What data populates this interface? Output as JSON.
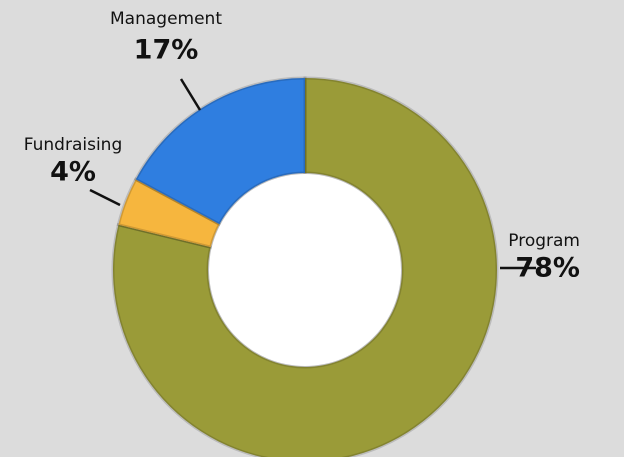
{
  "chart_data": {
    "type": "donut",
    "categories": [
      "Program",
      "Fundraising",
      "Management"
    ],
    "values": [
      78,
      4,
      17
    ],
    "value_labels": [
      "78%",
      "4%",
      "17%"
    ],
    "colors": [
      "#9a9b38",
      "#f6b63e",
      "#2f7ee0"
    ]
  }
}
